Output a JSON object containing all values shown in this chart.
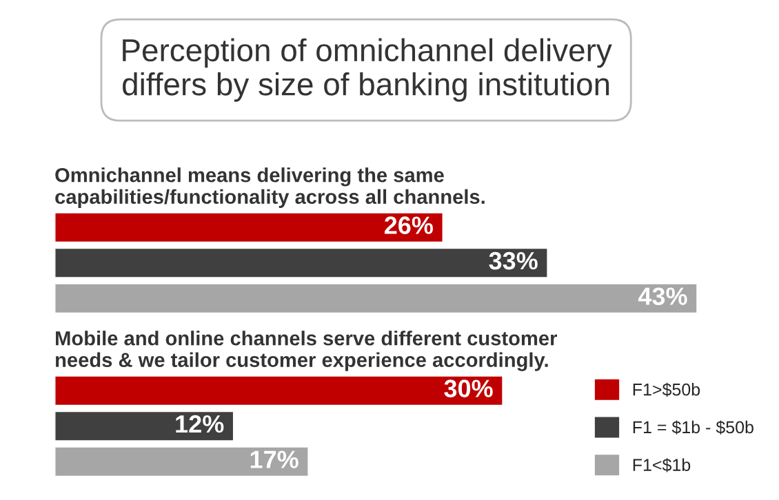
{
  "chart_data": {
    "type": "bar",
    "orientation": "horizontal",
    "title": "Perception of omnichannel delivery\ndiffers by size of banking institution",
    "categories": [
      "Omnichannel means delivering the same\ncapabilities/functionality across all channels.",
      "Mobile and online channels serve different customer\nneeds & we tailor customer experience accordingly."
    ],
    "series": [
      {
        "name": "F1>$50b",
        "color": "#c00000",
        "values": [
          26,
          30
        ],
        "value_labels": [
          "26%",
          "30%"
        ]
      },
      {
        "name": "F1 = $1b - $50b",
        "color": "#404040",
        "values": [
          33,
          12
        ],
        "value_labels": [
          "33%",
          "12%"
        ]
      },
      {
        "name": "F1<$1b",
        "color": "#a6a6a6",
        "values": [
          43,
          17
        ],
        "value_labels": [
          "43%",
          "17%"
        ]
      }
    ],
    "legend": "bottom right"
  }
}
